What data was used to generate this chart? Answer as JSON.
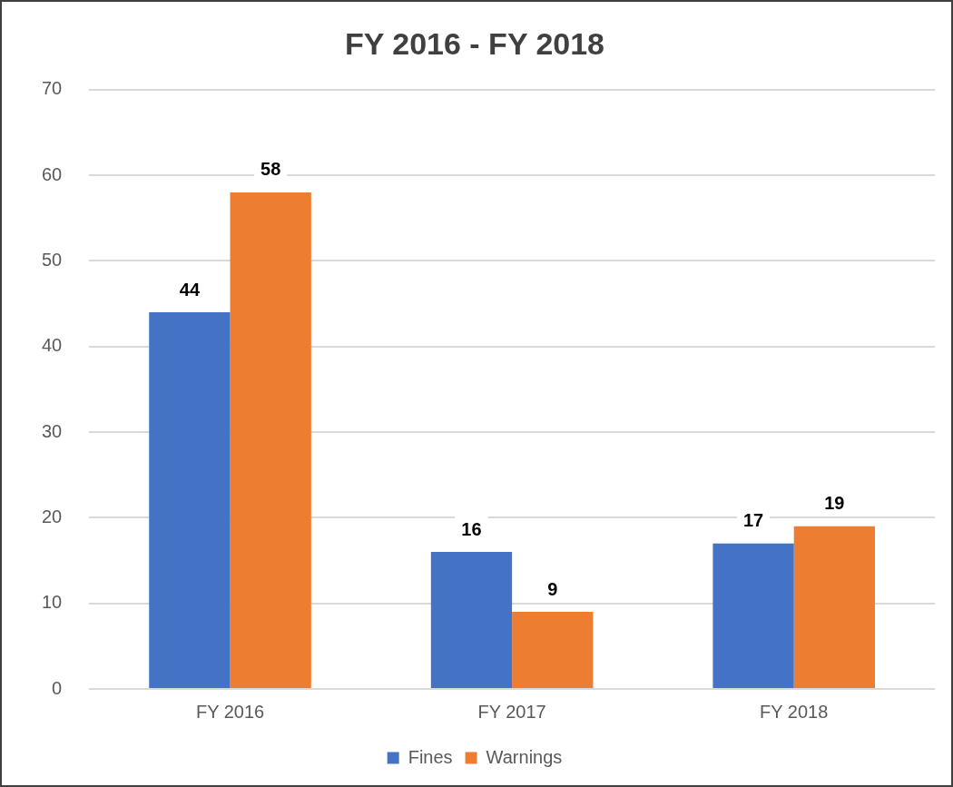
{
  "chart_data": {
    "type": "bar",
    "title": "FY 2016 - FY 2018",
    "categories": [
      "FY 2016",
      "FY 2017",
      "FY 2018"
    ],
    "series": [
      {
        "name": "Fines",
        "color": "#4472c4",
        "values": [
          44,
          16,
          17
        ]
      },
      {
        "name": "Warnings",
        "color": "#ed7d31",
        "values": [
          58,
          9,
          19
        ]
      }
    ],
    "ylim": [
      0,
      70
    ],
    "yticks": [
      0,
      10,
      20,
      30,
      40,
      50,
      60,
      70
    ],
    "grid": "y",
    "legend": "bottom",
    "data_labels": true
  }
}
